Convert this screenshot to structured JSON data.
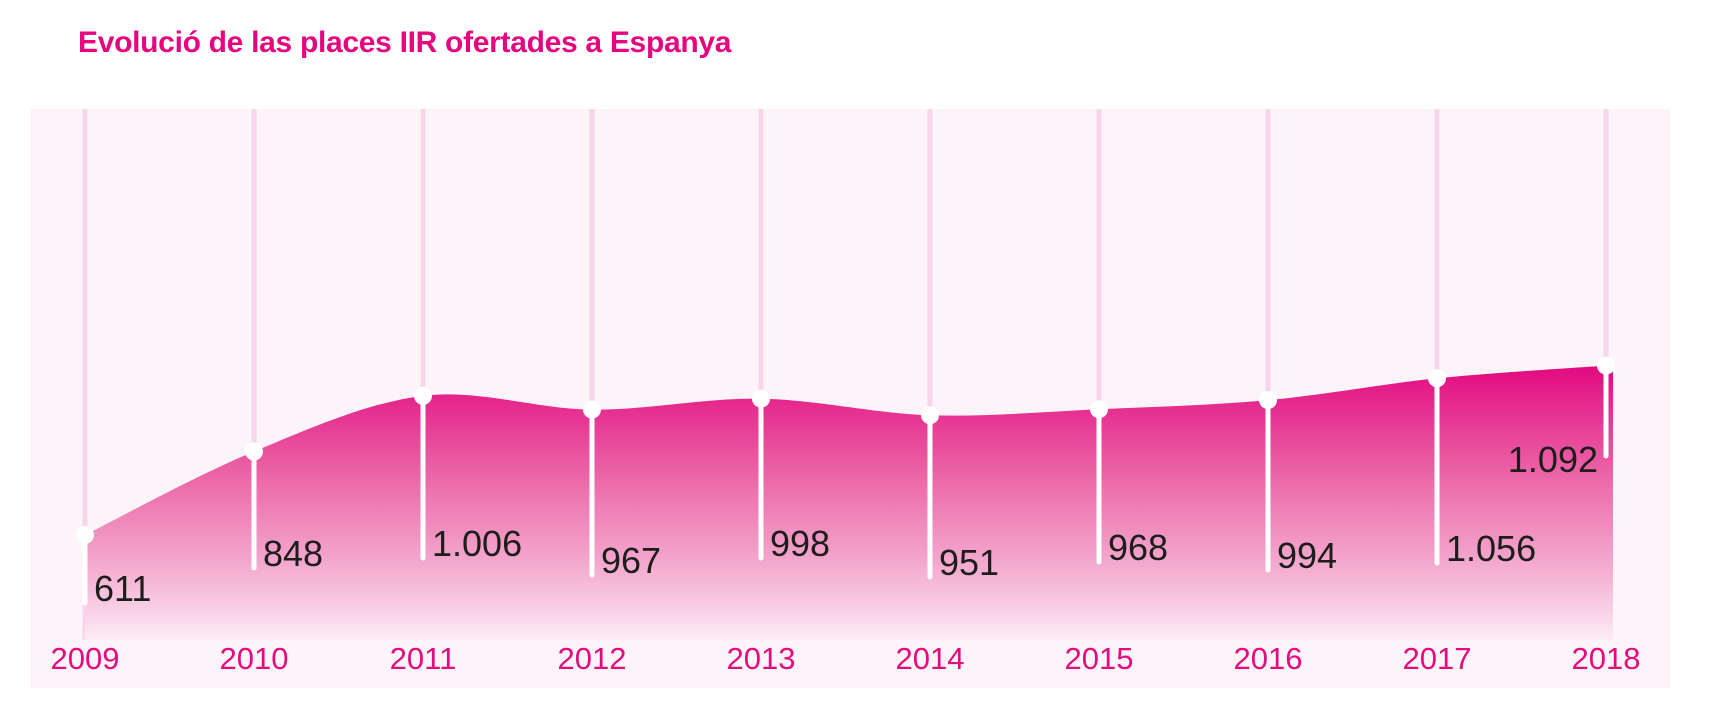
{
  "title": "Evolució de las places IIR ofertades a Espanya",
  "colors": {
    "accent": "#e5057f",
    "year_label": "#e40b7e",
    "value_label": "#1d1d1b",
    "plot_background": "#fdf4f9",
    "gridline": "#f8d6ea",
    "marker": "#ffffff",
    "drop_line": "#ffffff",
    "area_gradient_top": "#e1017c",
    "area_gradient_bottom": "#fdf4f9"
  },
  "chart_data": {
    "type": "area",
    "title": "Evolució de las places IIR ofertades a Espanya",
    "categories": [
      "2009",
      "2010",
      "2011",
      "2012",
      "2013",
      "2014",
      "2015",
      "2016",
      "2017",
      "2018"
    ],
    "values": [
      611,
      848,
      1006,
      967,
      998,
      951,
      968,
      994,
      1056,
      1092
    ],
    "value_labels": [
      "611",
      "848",
      "1.006",
      "967",
      "998",
      "951",
      "968",
      "994",
      "1.056",
      "1.092"
    ],
    "xlabel": "",
    "ylabel": "",
    "ylim": [
      0,
      1200
    ],
    "grid": "vertical-only",
    "legend": false,
    "marker": "white-circle",
    "annotation_style": "value printed at lower end of white drop line from each point"
  }
}
